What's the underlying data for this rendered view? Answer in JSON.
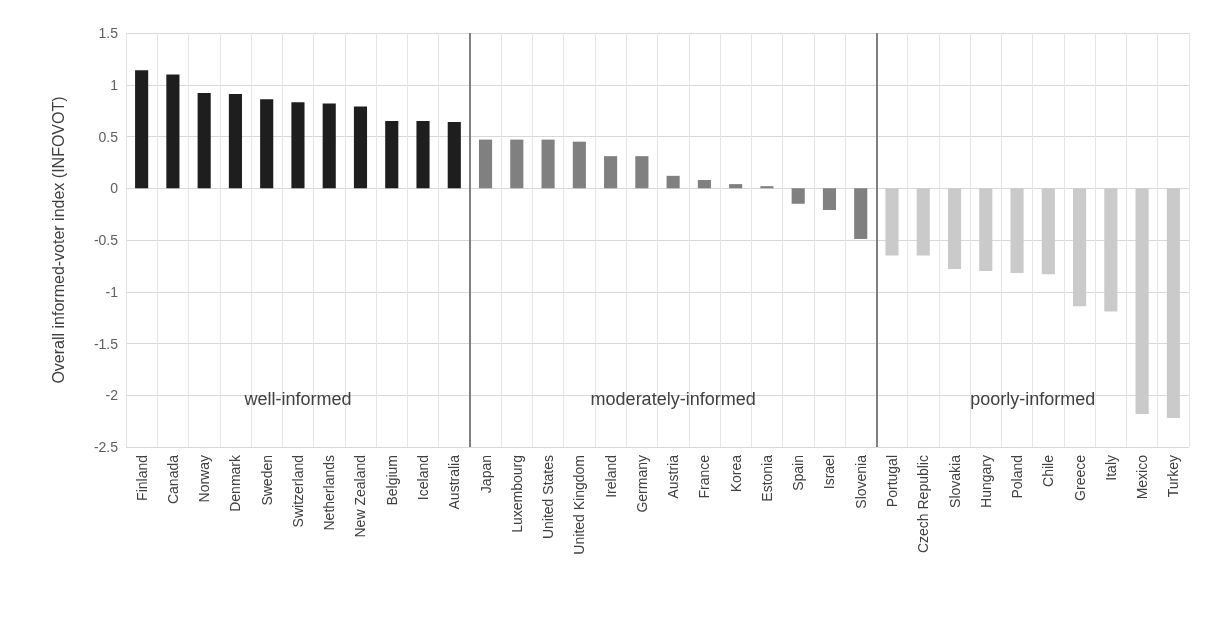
{
  "chart_data": {
    "type": "bar",
    "ylabel": "Overall informed-voter index (INFOVOT)",
    "categories": [
      "Finland",
      "Canada",
      "Norway",
      "Denmark",
      "Sweden",
      "Switzerland",
      "Netherlands",
      "New Zealand",
      "Belgium",
      "Iceland",
      "Australia",
      "Japan",
      "Luxembourg",
      "United States",
      "United Kingdom",
      "Ireland",
      "Germany",
      "Austria",
      "France",
      "Korea",
      "Estonia",
      "Spain",
      "Israel",
      "Slovenia",
      "Portugal",
      "Czech Republic",
      "Slovakia",
      "Hungary",
      "Poland",
      "Chile",
      "Greece",
      "Italy",
      "Mexico",
      "Turkey"
    ],
    "values": [
      1.14,
      1.1,
      0.92,
      0.91,
      0.86,
      0.83,
      0.82,
      0.79,
      0.65,
      0.65,
      0.64,
      0.47,
      0.47,
      0.47,
      0.45,
      0.31,
      0.31,
      0.12,
      0.08,
      0.04,
      0.02,
      -0.15,
      -0.21,
      -0.49,
      -0.65,
      -0.65,
      -0.78,
      -0.8,
      -0.82,
      -0.83,
      -1.14,
      -1.19,
      -2.18,
      -2.22
    ],
    "colors": [
      "#1e1e1e",
      "#1e1e1e",
      "#1e1e1e",
      "#1e1e1e",
      "#1e1e1e",
      "#1e1e1e",
      "#1e1e1e",
      "#1e1e1e",
      "#1e1e1e",
      "#1e1e1e",
      "#1e1e1e",
      "#808080",
      "#808080",
      "#808080",
      "#808080",
      "#808080",
      "#808080",
      "#808080",
      "#808080",
      "#808080",
      "#808080",
      "#808080",
      "#808080",
      "#808080",
      "#cacaca",
      "#cacaca",
      "#cacaca",
      "#cacaca",
      "#cacaca",
      "#cacaca",
      "#cacaca",
      "#cacaca",
      "#cacaca",
      "#cacaca"
    ],
    "ylim": [
      -2.5,
      1.5
    ],
    "yticks": [
      1.5,
      1,
      0.5,
      0,
      -0.5,
      -1,
      -1.5,
      -2,
      -2.5
    ],
    "grid": true,
    "annotations": [
      "well-informed",
      "moderately-informed",
      "poorly-informed"
    ]
  }
}
